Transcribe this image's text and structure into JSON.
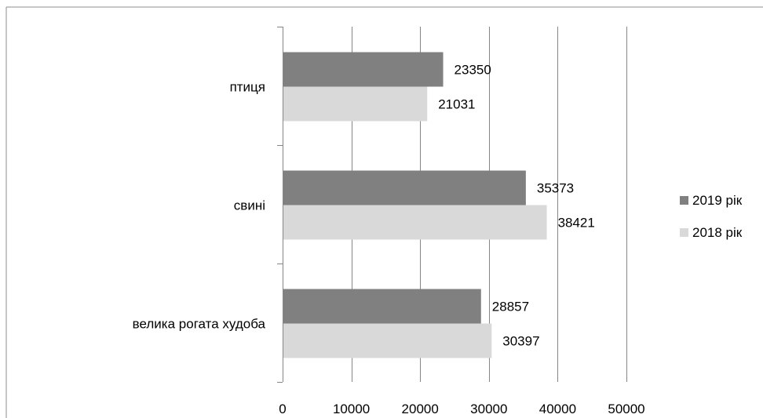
{
  "chart_data": {
    "type": "bar",
    "orientation": "horizontal",
    "categories": [
      "велика рогата худоба",
      "свині",
      "птиця"
    ],
    "series": [
      {
        "name": "2019 рік",
        "values": [
          28857,
          35373,
          23350
        ],
        "color": "#808080"
      },
      {
        "name": "2018 рік",
        "values": [
          30397,
          38421,
          21031
        ],
        "color": "#d9d9d9"
      }
    ],
    "xlim": [
      0,
      50000
    ],
    "xticks": [
      0,
      10000,
      20000,
      30000,
      40000,
      50000
    ],
    "xtick_labels": [
      "0",
      "10000",
      "20000",
      "30000",
      "40000",
      "50000"
    ],
    "grid": "vertical",
    "legend_position": "right",
    "data_labels": true
  }
}
